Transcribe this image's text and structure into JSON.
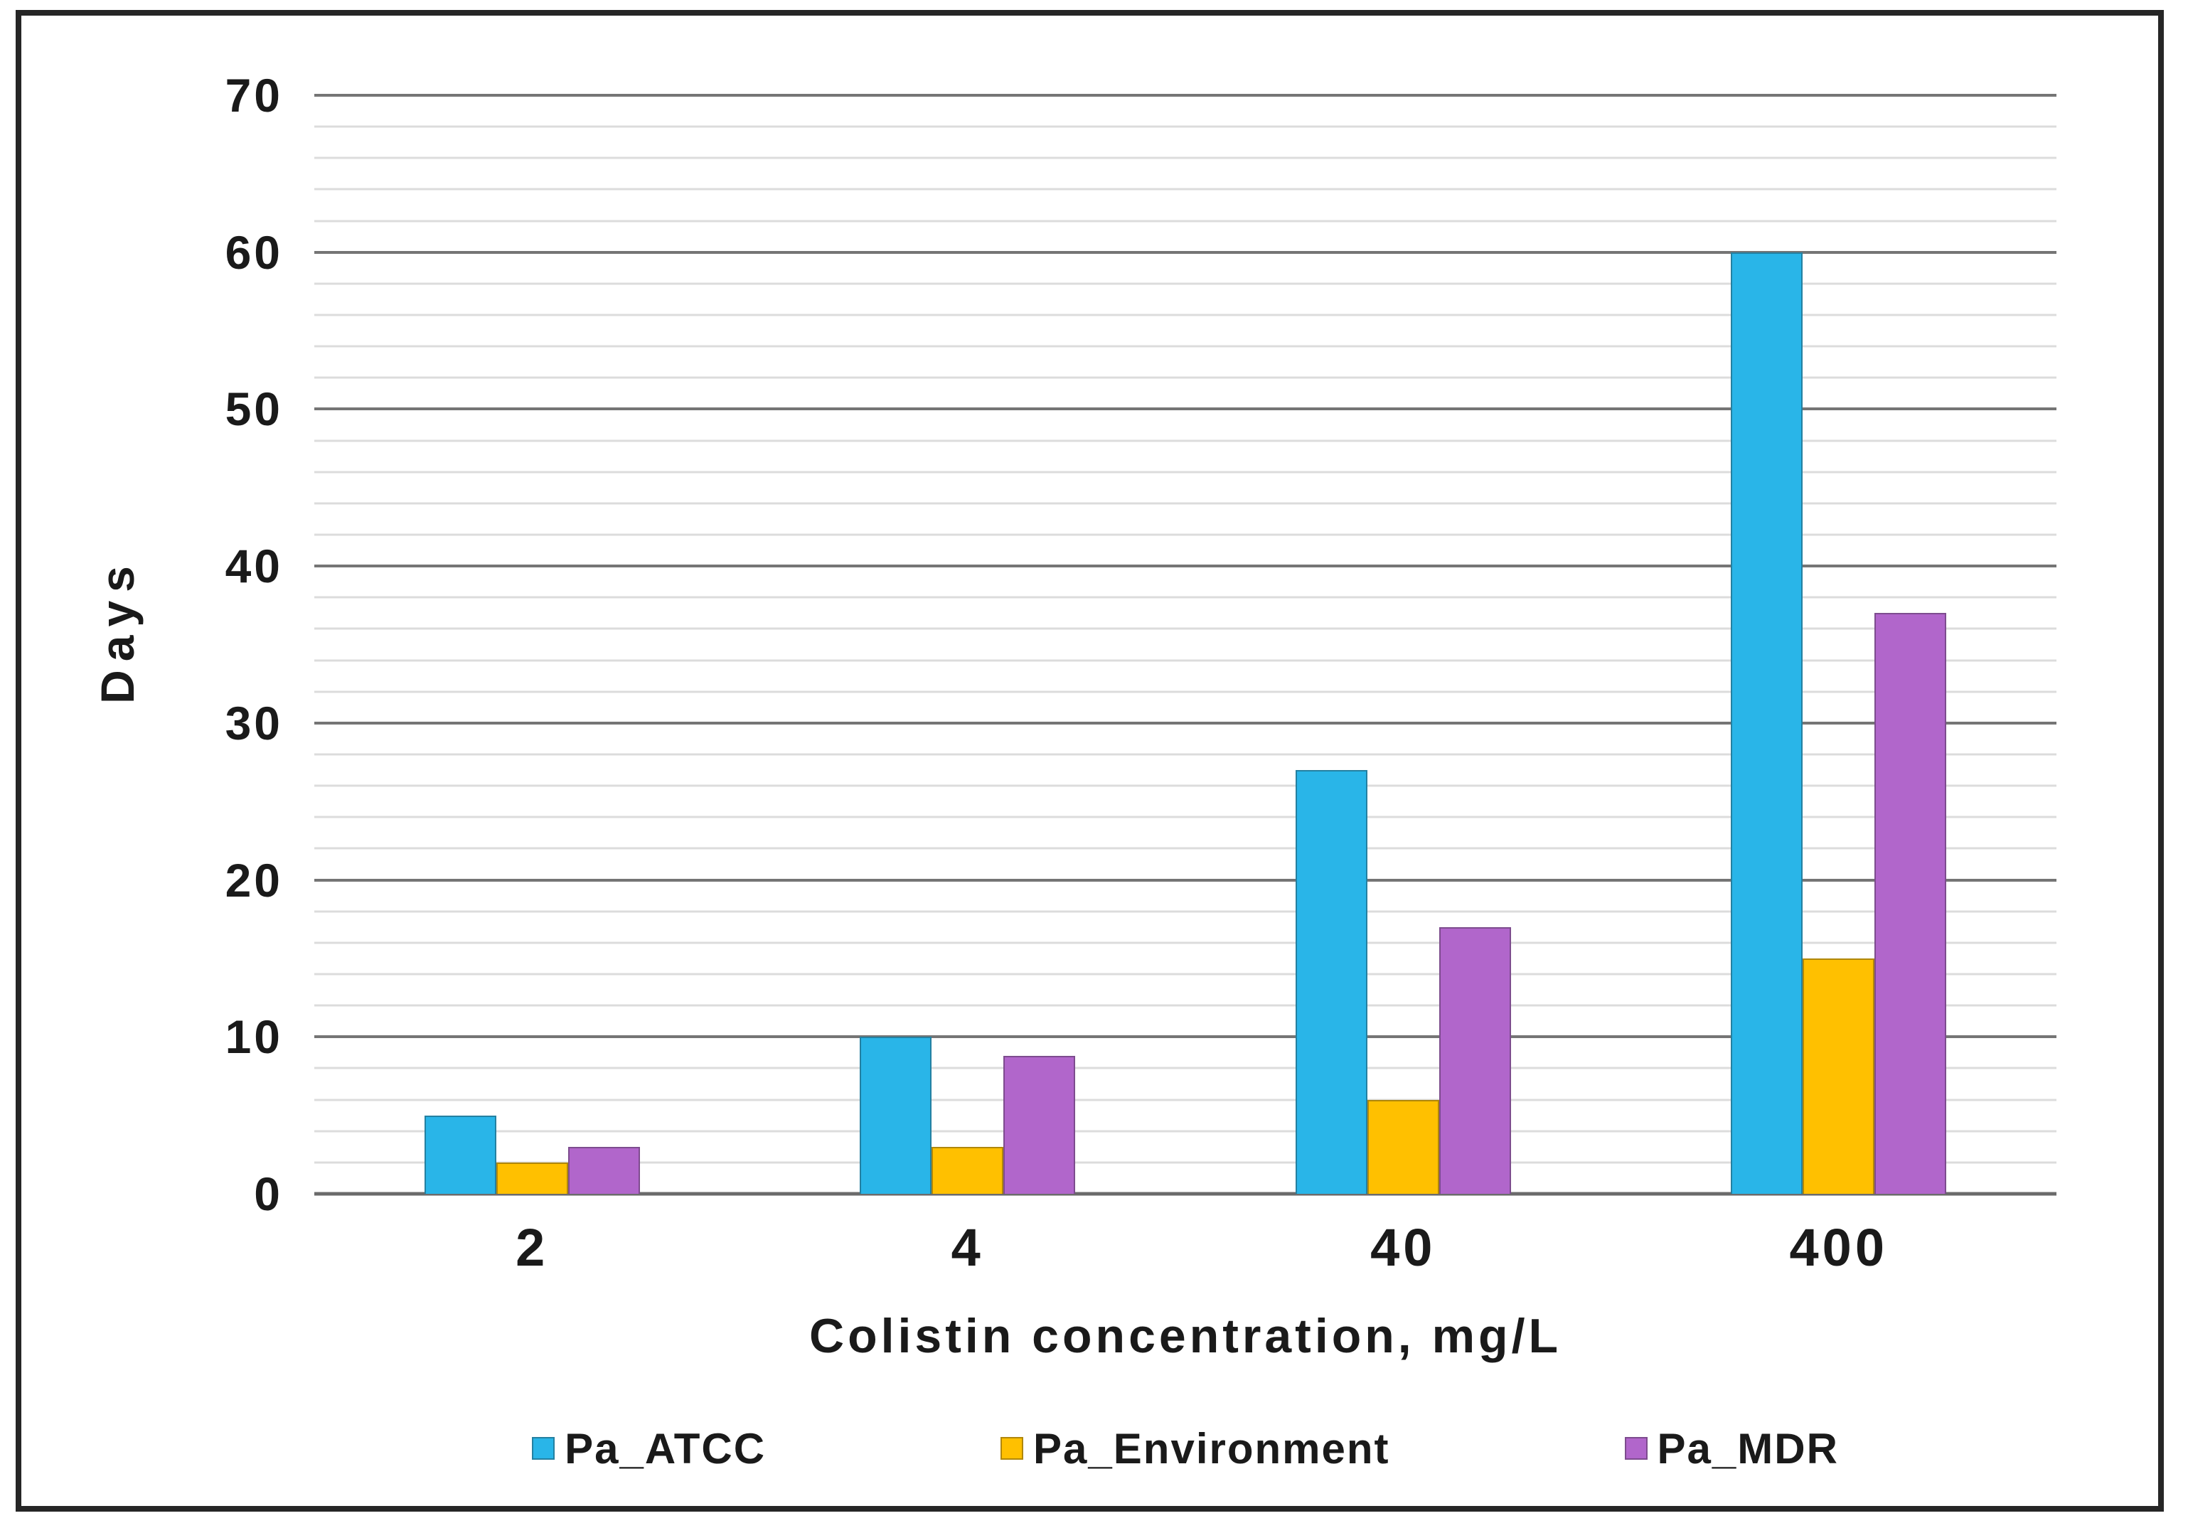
{
  "chart_data": {
    "type": "bar",
    "title": "",
    "categories": [
      "2",
      "4",
      "40",
      "400"
    ],
    "series": [
      {
        "name": "Pa_ATCC",
        "color": "#29b5e8",
        "values": [
          5,
          10,
          27,
          60
        ]
      },
      {
        "name": "Pa_Environment",
        "color": "#ffc000",
        "values": [
          2,
          3,
          6,
          15
        ]
      },
      {
        "name": "Pa_MDR",
        "color": "#b166cb",
        "values": [
          3,
          8.8,
          17,
          37
        ]
      }
    ],
    "xlabel": "Colistin concentration, mg/L",
    "ylabel": "Days",
    "ylim": [
      0,
      70
    ],
    "ytick_step": 10,
    "minor_gridline_step": 2,
    "y_ticks": [
      "0",
      "10",
      "20",
      "30",
      "40",
      "50",
      "60",
      "70"
    ],
    "grid": true,
    "legend_position": "bottom",
    "colors": {
      "major_gridline": "#757575",
      "minor_gridline": "#dcdcdc",
      "axis_line": "#6b6b6b",
      "frame_border": "#262626",
      "text": "#1a1a1a",
      "background": "#ffffff"
    }
  }
}
